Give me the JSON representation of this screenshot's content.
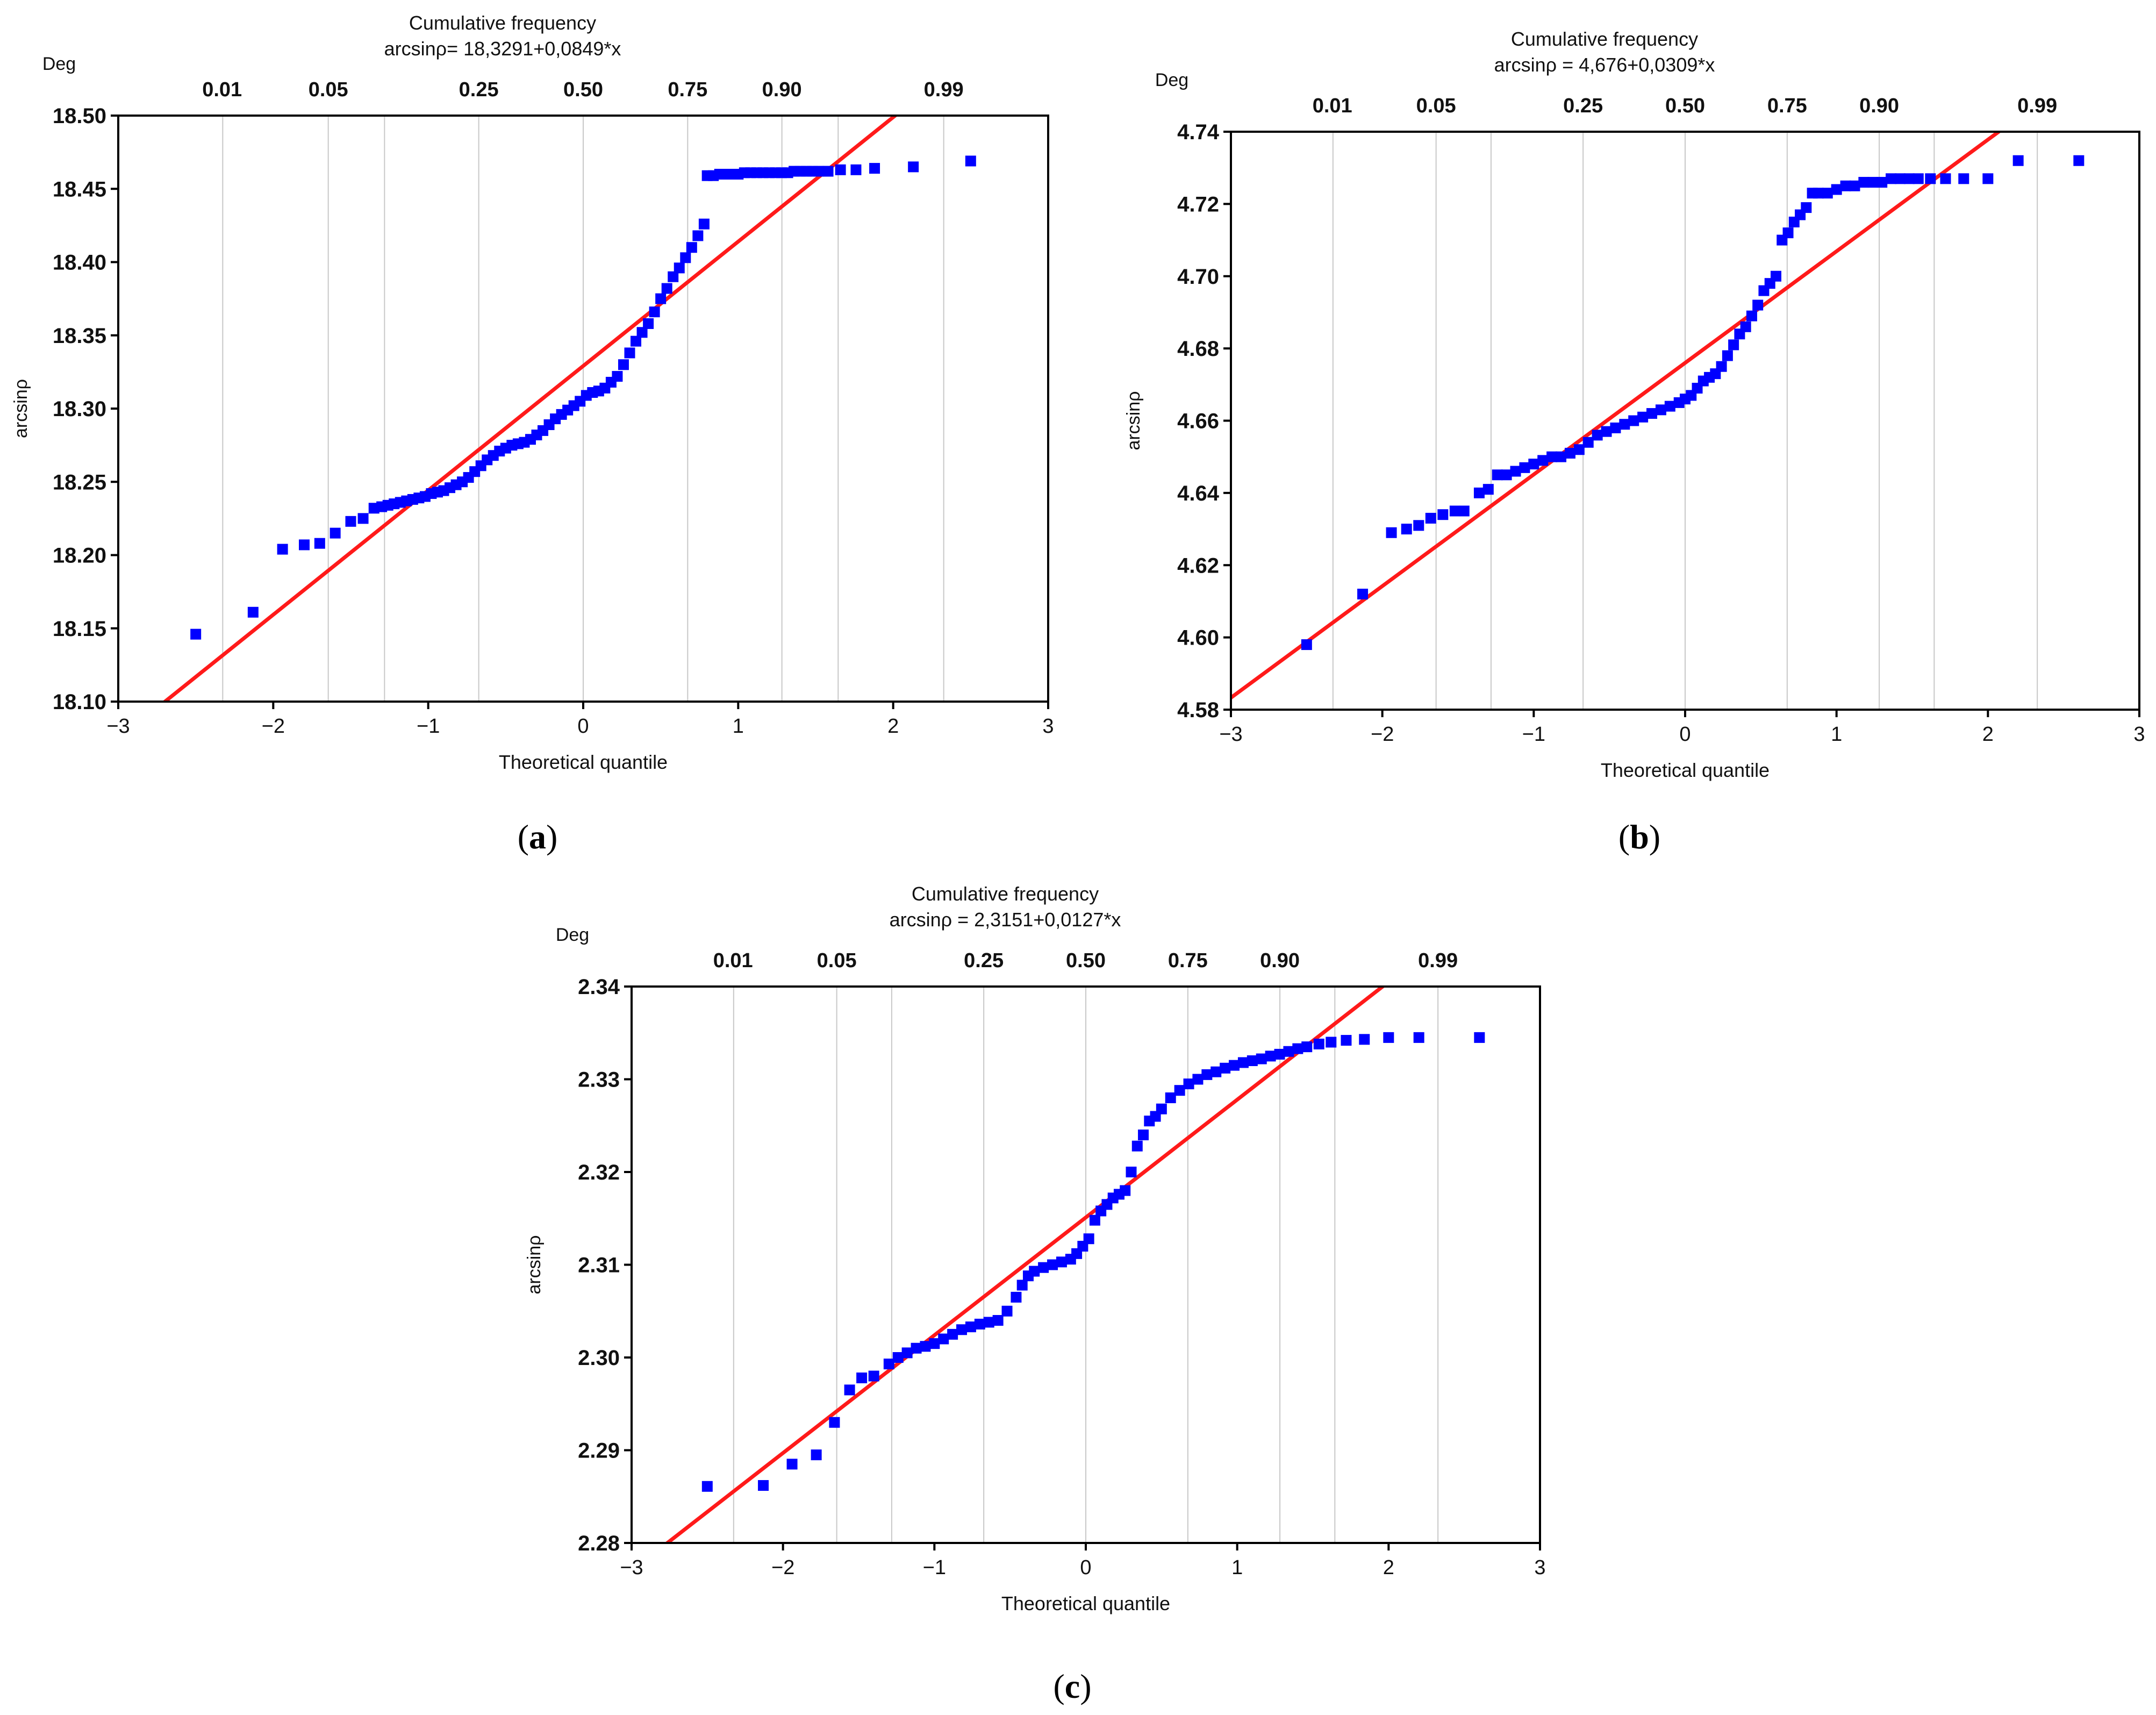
{
  "colors": {
    "points": "#0000ff",
    "fit_line": "#ff1a1a",
    "grid": "#c8c8c8",
    "axis": "#000000",
    "background": "#ffffff"
  },
  "chart_data": [
    {
      "type": "scatter",
      "panel_label": "a",
      "title": "Cumulative frequency",
      "subtitle": "arcsinρ= 18,3291+0,0849*x",
      "xlabel": "Theoretical quantile",
      "ylabel": "arcsinρ",
      "yunit": "Deg",
      "xlim": [
        -3,
        3
      ],
      "ylim": [
        18.1,
        18.5
      ],
      "xticks": [
        -3,
        -2,
        -1,
        0,
        1,
        2,
        3
      ],
      "xtick_labels": [
        "−3",
        "−2",
        "−1",
        "0",
        "1",
        "2",
        "3"
      ],
      "yticks": [
        18.1,
        18.15,
        18.2,
        18.25,
        18.3,
        18.35,
        18.4,
        18.45,
        18.5
      ],
      "ytick_labels": [
        "18.10",
        "18.15",
        "18.20",
        "18.25",
        "18.30",
        "18.35",
        "18.40",
        "18.45",
        "18.50"
      ],
      "top_axis": {
        "labels": [
          "0.01",
          "0.05",
          "0.25",
          "0.50",
          "0.75",
          "0.90",
          "0.99"
        ],
        "label_positions": [
          -2.33,
          -1.645,
          -0.674,
          0,
          0.674,
          1.282,
          2.326
        ],
        "gridlines": [
          -2.326,
          -1.645,
          -1.282,
          -0.674,
          0,
          0.674,
          1.282,
          1.645,
          2.326
        ]
      },
      "fit_line": {
        "intercept": 18.3291,
        "slope": 0.0849
      },
      "points": {
        "x": [
          -2.5,
          -2.13,
          -1.94,
          -1.8,
          -1.7,
          -1.6,
          -1.5,
          -1.42,
          -1.35,
          -1.3,
          -1.26,
          -1.22,
          -1.18,
          -1.14,
          -1.1,
          -1.06,
          -1.02,
          -0.98,
          -0.94,
          -0.9,
          -0.86,
          -0.82,
          -0.78,
          -0.74,
          -0.7,
          -0.66,
          -0.62,
          -0.58,
          -0.54,
          -0.5,
          -0.46,
          -0.42,
          -0.38,
          -0.34,
          -0.3,
          -0.26,
          -0.22,
          -0.18,
          -0.14,
          -0.1,
          -0.06,
          -0.02,
          0.02,
          0.06,
          0.1,
          0.14,
          0.18,
          0.22,
          0.26,
          0.3,
          0.34,
          0.38,
          0.42,
          0.46,
          0.5,
          0.54,
          0.58,
          0.62,
          0.66,
          0.7,
          0.74,
          0.78,
          0.8,
          0.84,
          0.88,
          0.92,
          0.96,
          1.0,
          1.04,
          1.08,
          1.12,
          1.16,
          1.2,
          1.24,
          1.28,
          1.32,
          1.36,
          1.4,
          1.44,
          1.48,
          1.52,
          1.58,
          1.66,
          1.76,
          1.88,
          2.13,
          2.5
        ],
        "y": [
          18.146,
          18.161,
          18.204,
          18.207,
          18.208,
          18.215,
          18.223,
          18.225,
          18.232,
          18.233,
          18.234,
          18.235,
          18.236,
          18.237,
          18.238,
          18.239,
          18.24,
          18.242,
          18.243,
          18.244,
          18.246,
          18.248,
          18.25,
          18.253,
          18.257,
          18.261,
          18.265,
          18.268,
          18.271,
          18.273,
          18.275,
          18.276,
          18.277,
          18.279,
          18.282,
          18.285,
          18.289,
          18.293,
          18.296,
          18.299,
          18.302,
          18.305,
          18.309,
          18.311,
          18.312,
          18.314,
          18.318,
          18.322,
          18.33,
          18.338,
          18.346,
          18.352,
          18.358,
          18.366,
          18.375,
          18.382,
          18.39,
          18.396,
          18.403,
          18.41,
          18.418,
          18.426,
          18.459,
          18.459,
          18.46,
          18.46,
          18.46,
          18.46,
          18.461,
          18.461,
          18.461,
          18.461,
          18.461,
          18.461,
          18.461,
          18.461,
          18.462,
          18.462,
          18.462,
          18.462,
          18.462,
          18.462,
          18.463,
          18.463,
          18.464,
          18.465,
          18.469
        ]
      }
    },
    {
      "type": "scatter",
      "panel_label": "b",
      "title": "Cumulative frequency",
      "subtitle": "arcsinρ = 4,676+0,0309*x",
      "xlabel": "Theoretical quantile",
      "ylabel": "arcsinρ",
      "yunit": "Deg",
      "xlim": [
        -3,
        3
      ],
      "ylim": [
        4.58,
        4.74
      ],
      "xticks": [
        -3,
        -2,
        -1,
        0,
        1,
        2,
        3
      ],
      "xtick_labels": [
        "−3",
        "−2",
        "−1",
        "0",
        "1",
        "2",
        "3"
      ],
      "yticks": [
        4.58,
        4.6,
        4.62,
        4.64,
        4.66,
        4.68,
        4.7,
        4.72,
        4.74
      ],
      "ytick_labels": [
        "4.58",
        "4.60",
        "4.62",
        "4.64",
        "4.66",
        "4.68",
        "4.70",
        "4.72",
        "4.74"
      ],
      "top_axis": {
        "labels": [
          "0.01",
          "0.05",
          "0.25",
          "0.50",
          "0.75",
          "0.90",
          "0.99"
        ],
        "label_positions": [
          -2.33,
          -1.645,
          -0.674,
          0,
          0.674,
          1.282,
          2.326
        ],
        "gridlines": [
          -2.326,
          -1.645,
          -1.282,
          -0.674,
          0,
          0.674,
          1.282,
          1.645,
          2.326
        ]
      },
      "fit_line": {
        "intercept": 4.676,
        "slope": 0.0309
      },
      "points": {
        "x": [
          -2.5,
          -2.13,
          -1.94,
          -1.84,
          -1.76,
          -1.68,
          -1.6,
          -1.52,
          -1.46,
          -1.36,
          -1.3,
          -1.24,
          -1.18,
          -1.12,
          -1.06,
          -1.0,
          -0.94,
          -0.88,
          -0.82,
          -0.76,
          -0.7,
          -0.64,
          -0.58,
          -0.52,
          -0.46,
          -0.4,
          -0.34,
          -0.28,
          -0.22,
          -0.16,
          -0.1,
          -0.04,
          0.0,
          0.04,
          0.08,
          0.12,
          0.16,
          0.2,
          0.24,
          0.28,
          0.32,
          0.36,
          0.4,
          0.44,
          0.48,
          0.52,
          0.56,
          0.6,
          0.64,
          0.68,
          0.72,
          0.76,
          0.8,
          0.84,
          0.88,
          0.94,
          1.0,
          1.06,
          1.12,
          1.18,
          1.24,
          1.3,
          1.36,
          1.42,
          1.48,
          1.54,
          1.62,
          1.72,
          1.84,
          2.0,
          2.2,
          2.6
        ],
        "y": [
          4.598,
          4.612,
          4.629,
          4.63,
          4.631,
          4.633,
          4.634,
          4.635,
          4.635,
          4.64,
          4.641,
          4.645,
          4.645,
          4.646,
          4.647,
          4.648,
          4.649,
          4.65,
          4.65,
          4.651,
          4.652,
          4.654,
          4.656,
          4.657,
          4.658,
          4.659,
          4.66,
          4.661,
          4.662,
          4.663,
          4.664,
          4.665,
          4.666,
          4.667,
          4.669,
          4.671,
          4.672,
          4.673,
          4.675,
          4.678,
          4.681,
          4.684,
          4.686,
          4.689,
          4.692,
          4.696,
          4.698,
          4.7,
          4.71,
          4.712,
          4.715,
          4.717,
          4.719,
          4.723,
          4.723,
          4.723,
          4.724,
          4.725,
          4.725,
          4.726,
          4.726,
          4.726,
          4.727,
          4.727,
          4.727,
          4.727,
          4.727,
          4.727,
          4.727,
          4.727,
          4.732,
          4.732
        ]
      }
    },
    {
      "type": "scatter",
      "panel_label": "c",
      "title": "Cumulative frequency",
      "subtitle": "arcsinρ = 2,3151+0,0127*x",
      "xlabel": "Theoretical quantile",
      "ylabel": "arcsinρ",
      "yunit": "Deg",
      "xlim": [
        -3,
        3
      ],
      "ylim": [
        2.28,
        2.34
      ],
      "xticks": [
        -3,
        -2,
        -1,
        0,
        1,
        2,
        3
      ],
      "xtick_labels": [
        "−3",
        "−2",
        "−1",
        "0",
        "1",
        "2",
        "3"
      ],
      "yticks": [
        2.28,
        2.29,
        2.3,
        2.31,
        2.32,
        2.33,
        2.34
      ],
      "ytick_labels": [
        "2.28",
        "2.29",
        "2.30",
        "2.31",
        "2.32",
        "2.33",
        "2.34"
      ],
      "top_axis": {
        "labels": [
          "0.01",
          "0.05",
          "0.25",
          "0.50",
          "0.75",
          "0.90",
          "0.99"
        ],
        "label_positions": [
          -2.33,
          -1.645,
          -0.674,
          0,
          0.674,
          1.282,
          2.326
        ],
        "gridlines": [
          -2.326,
          -1.645,
          -1.282,
          -0.674,
          0,
          0.674,
          1.282,
          1.645,
          2.326
        ]
      },
      "fit_line": {
        "intercept": 2.3151,
        "slope": 0.0127
      },
      "points": {
        "x": [
          -2.5,
          -2.13,
          -1.94,
          -1.78,
          -1.66,
          -1.56,
          -1.48,
          -1.4,
          -1.3,
          -1.24,
          -1.18,
          -1.12,
          -1.06,
          -1.0,
          -0.94,
          -0.88,
          -0.82,
          -0.76,
          -0.7,
          -0.64,
          -0.58,
          -0.52,
          -0.46,
          -0.42,
          -0.38,
          -0.34,
          -0.28,
          -0.22,
          -0.16,
          -0.1,
          -0.06,
          -0.02,
          0.02,
          0.06,
          0.1,
          0.14,
          0.18,
          0.22,
          0.26,
          0.3,
          0.34,
          0.38,
          0.42,
          0.46,
          0.5,
          0.56,
          0.62,
          0.68,
          0.74,
          0.8,
          0.86,
          0.92,
          0.98,
          1.04,
          1.1,
          1.16,
          1.22,
          1.28,
          1.34,
          1.4,
          1.46,
          1.54,
          1.62,
          1.72,
          1.84,
          2.0,
          2.2,
          2.6
        ],
        "y": [
          2.2861,
          2.2862,
          2.2885,
          2.2895,
          2.293,
          2.2965,
          2.2978,
          2.298,
          2.2993,
          2.3,
          2.3005,
          2.301,
          2.3012,
          2.3015,
          2.302,
          2.3025,
          2.303,
          2.3033,
          2.3036,
          2.3038,
          2.304,
          2.305,
          2.3065,
          2.3078,
          2.3088,
          2.3093,
          2.3097,
          2.31,
          2.3103,
          2.3106,
          2.3112,
          2.312,
          2.3128,
          2.3148,
          2.3158,
          2.3165,
          2.3172,
          2.3176,
          2.318,
          2.32,
          2.3228,
          2.324,
          2.3255,
          2.326,
          2.3268,
          2.328,
          2.3288,
          2.3295,
          2.33,
          2.3305,
          2.3308,
          2.3312,
          2.3315,
          2.3318,
          2.332,
          2.3322,
          2.3325,
          2.3327,
          2.333,
          2.3333,
          2.3335,
          2.3338,
          2.334,
          2.3342,
          2.3343,
          2.3345,
          2.3345,
          2.3345
        ]
      }
    }
  ]
}
